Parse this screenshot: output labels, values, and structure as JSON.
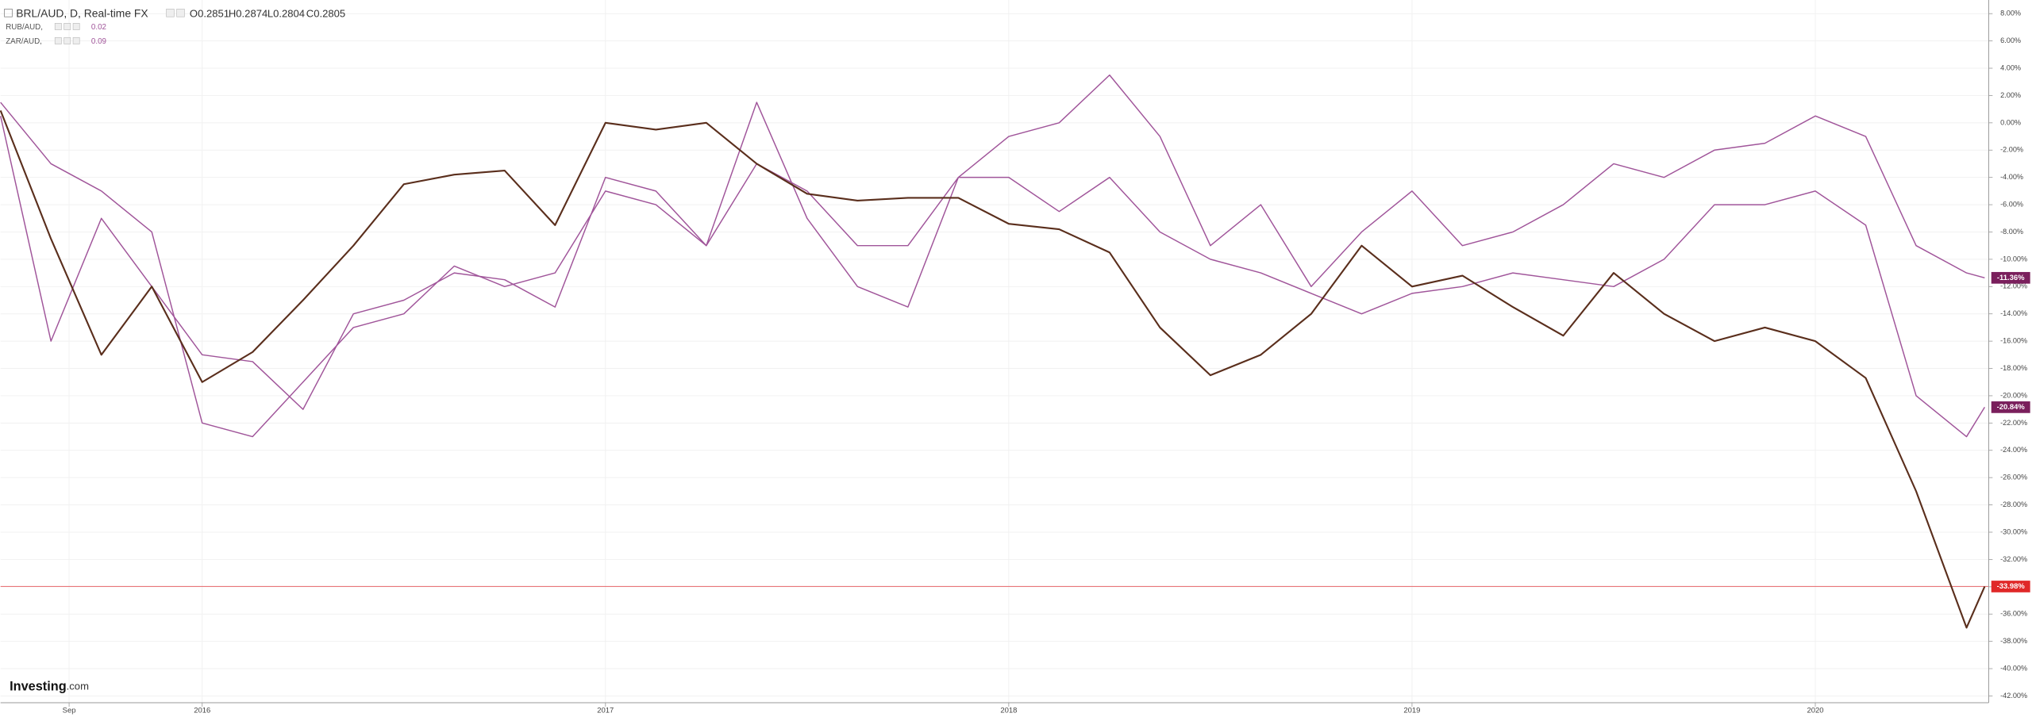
{
  "chart_data": {
    "type": "line",
    "header": {
      "ohlc": [
        "O0.2851",
        "H0.2874",
        "L0.2804",
        "C0.2805"
      ]
    },
    "brand": [
      "Investing",
      ".com"
    ],
    "x": [
      2015.5,
      2015.625,
      2015.75,
      2015.875,
      2016,
      2016.125,
      2016.25,
      2016.375,
      2016.5,
      2016.625,
      2016.75,
      2016.875,
      2017,
      2017.125,
      2017.25,
      2017.375,
      2017.5,
      2017.625,
      2017.75,
      2017.875,
      2018,
      2018.125,
      2018.25,
      2018.375,
      2018.5,
      2018.625,
      2018.75,
      2018.875,
      2019,
      2019.125,
      2019.25,
      2019.375,
      2019.5,
      2019.625,
      2019.75,
      2019.875,
      2020,
      2020.125,
      2020.25,
      2020.375,
      2020.42
    ],
    "xlim": [
      2015.5,
      2020.43
    ],
    "xticks": [
      {
        "value": 2015.67,
        "label": "Sep"
      },
      2016,
      2017,
      2018,
      2019,
      2020
    ],
    "ylim": [
      -42.5,
      9
    ],
    "yticks": [
      {
        "value": 8,
        "label": "8.00%"
      },
      {
        "value": 6,
        "label": "6.00%"
      },
      {
        "value": 4,
        "label": "4.00%"
      },
      {
        "value": 2,
        "label": "2.00%"
      },
      {
        "value": 0,
        "label": "0.00%"
      },
      {
        "value": -2,
        "label": "-2.00%"
      },
      {
        "value": -4,
        "label": "-4.00%"
      },
      {
        "value": -6,
        "label": "-6.00%"
      },
      {
        "value": -8,
        "label": "-8.00%"
      },
      {
        "value": -10,
        "label": "-10.00%"
      },
      {
        "value": -12,
        "label": "-12.00%"
      },
      {
        "value": -14,
        "label": "-14.00%"
      },
      {
        "value": -16,
        "label": "-16.00%"
      },
      {
        "value": -18,
        "label": "-18.00%"
      },
      {
        "value": -20,
        "label": "-20.00%"
      },
      {
        "value": -22,
        "label": "-22.00%"
      },
      {
        "value": -24,
        "label": "-24.00%"
      },
      {
        "value": -26,
        "label": "-26.00%"
      },
      {
        "value": -28,
        "label": "-28.00%"
      },
      {
        "value": -30,
        "label": "-30.00%"
      },
      {
        "value": -32,
        "label": "-32.00%"
      },
      {
        "value": -34,
        "label": "-34.00%"
      },
      {
        "value": -36,
        "label": "-36.00%"
      },
      {
        "value": -38,
        "label": "-38.00%"
      },
      {
        "value": -40,
        "label": "-40.00%"
      },
      {
        "value": -42,
        "label": "-42.00%"
      }
    ],
    "grid": true,
    "hline": {
      "value": -33.98,
      "color": "#e8767a"
    },
    "series": [
      {
        "name": "BRL/AUD, D, Real-time FX",
        "color": "#5a2e1c",
        "label_color": "#e02828",
        "values": [
          0.9,
          -8.5,
          -17,
          -12,
          -19,
          -16.8,
          -13,
          -9,
          -4.5,
          -3.8,
          -3.5,
          -7.5,
          0,
          -0.5,
          0,
          -3,
          -5.2,
          -5.7,
          -5.5,
          -5.5,
          -7.4,
          -7.8,
          -9.5,
          -15,
          -18.5,
          -17,
          -14,
          -9,
          -12,
          -11.2,
          -13.5,
          -15.6,
          -11,
          -14,
          -16,
          -15,
          -16,
          -18.7,
          -27,
          -37,
          -33.98
        ],
        "value_labels": [
          null,
          null,
          null,
          null,
          null,
          null,
          null,
          null,
          null,
          null,
          null,
          null,
          null,
          null,
          null,
          null,
          null,
          null,
          null,
          null,
          null,
          null,
          null,
          null,
          null,
          null,
          null,
          null,
          null,
          null,
          null,
          null,
          null,
          null,
          null,
          null,
          null,
          null,
          null,
          null,
          "-33.98%"
        ]
      },
      {
        "name": "RUB/AUD,",
        "legend_value": "0.02",
        "color": "#a0559a",
        "label_color": "#7a1f5c",
        "values": [
          1.5,
          -3,
          -5,
          -8,
          -22,
          -23,
          -19,
          -15,
          -14,
          -10.5,
          -12,
          -11,
          -5,
          -6,
          -9,
          1.5,
          -7,
          -12,
          -13.5,
          -4,
          -1,
          0,
          3.5,
          -1,
          -9,
          -6,
          -12,
          -8,
          -5,
          -9,
          -8,
          -6,
          -3,
          -4,
          -2,
          -1.5,
          0.5,
          -1,
          -9,
          -11,
          -11.36
        ],
        "value_labels": [
          null,
          null,
          null,
          null,
          null,
          null,
          null,
          null,
          null,
          null,
          null,
          null,
          null,
          null,
          null,
          null,
          null,
          null,
          null,
          null,
          null,
          null,
          null,
          null,
          null,
          null,
          null,
          null,
          null,
          null,
          null,
          null,
          null,
          null,
          null,
          null,
          null,
          null,
          null,
          null,
          "-11.36%"
        ]
      },
      {
        "name": "ZAR/AUD,",
        "legend_value": "0.09",
        "color": "#a0559a",
        "label_color": "#7a1f5c",
        "values": [
          0.5,
          -16,
          -7,
          -12,
          -17,
          -17.5,
          -21,
          -14,
          -13,
          -11,
          -11.5,
          -13.5,
          -4,
          -5,
          -9,
          -3,
          -5,
          -9,
          -9,
          -4,
          -4,
          -6.5,
          -4,
          -8,
          -10,
          -11,
          -12.5,
          -14,
          -12.5,
          -12,
          -11,
          -11.5,
          -12,
          -10,
          -6,
          -6,
          -5,
          -7.5,
          -20,
          -23,
          -20.84
        ],
        "value_labels": [
          null,
          null,
          null,
          null,
          null,
          null,
          null,
          null,
          null,
          null,
          null,
          null,
          null,
          null,
          null,
          null,
          null,
          null,
          null,
          null,
          null,
          null,
          null,
          null,
          null,
          null,
          null,
          null,
          null,
          null,
          null,
          null,
          null,
          null,
          null,
          null,
          null,
          null,
          null,
          null,
          "-20.84%"
        ]
      }
    ]
  }
}
